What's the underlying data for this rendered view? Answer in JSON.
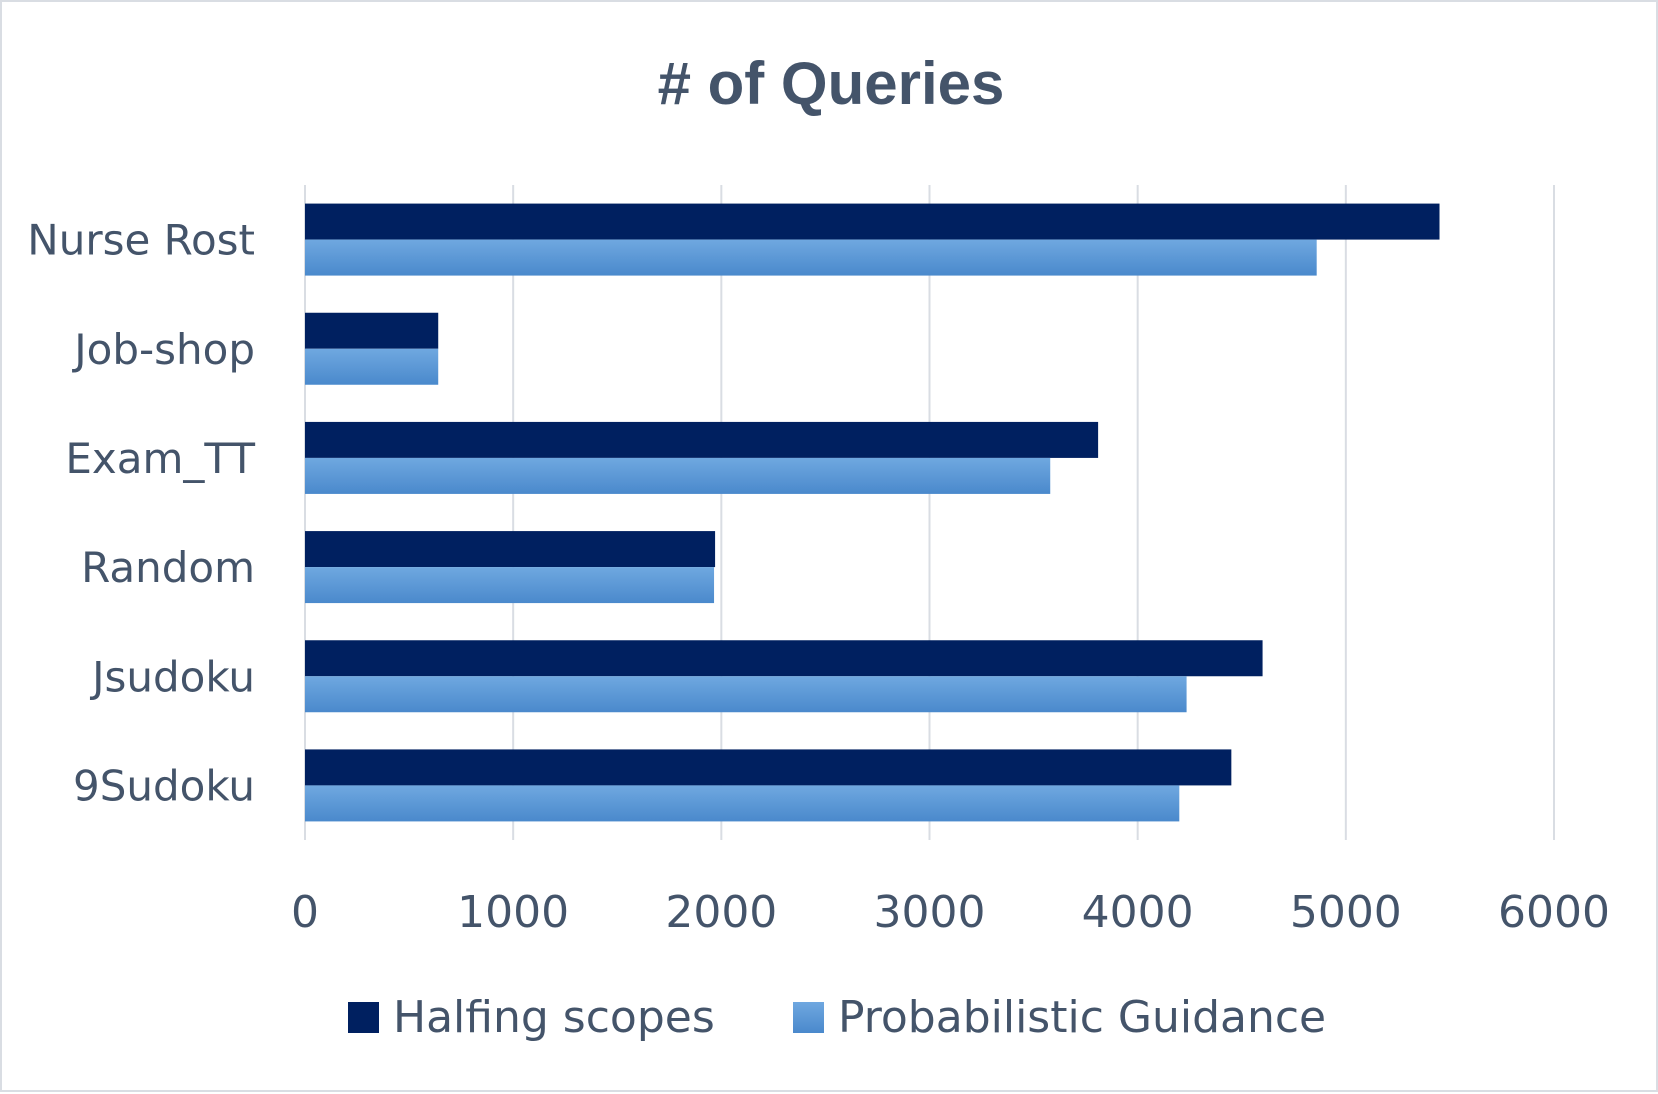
{
  "chart_data": {
    "type": "bar",
    "orientation": "horizontal",
    "title": "# of Queries",
    "xlabel": "",
    "ylabel": "",
    "categories": [
      "Nurse Rost",
      "Job-shop",
      "Exam_TT",
      "Random",
      "Jsudoku",
      "9Sudoku"
    ],
    "series": [
      {
        "name": "Halfing scopes",
        "values": [
          5450,
          640,
          3810,
          1970,
          4600,
          4450
        ],
        "color": "#002060"
      },
      {
        "name": "Probabilistic Guidance",
        "values": [
          4860,
          640,
          3580,
          1965,
          4235,
          4200
        ],
        "color": "#5b9bd5"
      }
    ],
    "xlim": [
      0,
      6000
    ],
    "xticks": [
      "0",
      "1000",
      "2000",
      "3000",
      "4000",
      "5000",
      "6000"
    ],
    "grid": "vertical",
    "legend_position": "bottom"
  }
}
